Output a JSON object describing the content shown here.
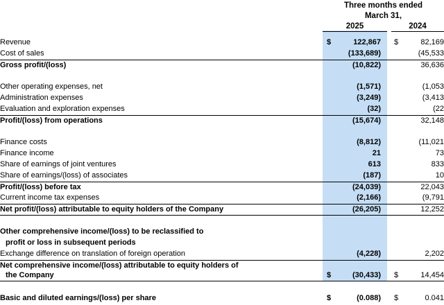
{
  "header": {
    "period_line1": "Three months ended",
    "period_line2": "March 31,",
    "col_2025": "2025",
    "col_2024": "2024"
  },
  "rows": [
    {
      "label": "Revenue",
      "v2025": "122,867",
      "v2024": "82,169",
      "d2025": "$",
      "d2024": "$"
    },
    {
      "label": "Cost of sales",
      "v2025": "(133,689)",
      "v2024": "(45,533"
    },
    {
      "label": "Gross profit/(loss)",
      "v2025": "(10,822)",
      "v2024": "36,636"
    },
    {
      "label": "Other operating expenses, net",
      "v2025": "(1,571)",
      "v2024": "(1,053"
    },
    {
      "label": "Administration expenses",
      "v2025": "(3,249)",
      "v2024": "(3,413"
    },
    {
      "label": "Evaluation and exploration expenses",
      "v2025": "(32)",
      "v2024": "(22"
    },
    {
      "label": "Profit/(loss) from operations",
      "v2025": "(15,674)",
      "v2024": "32,148"
    },
    {
      "label": "Finance costs",
      "v2025": "(8,812)",
      "v2024": "(11,021"
    },
    {
      "label": "Finance income",
      "v2025": "21",
      "v2024": "73"
    },
    {
      "label": "Share of earnings of joint ventures",
      "v2025": "613",
      "v2024": "833"
    },
    {
      "label": "Share of earnings/(loss) of associates",
      "v2025": "(187)",
      "v2024": "10"
    },
    {
      "label": "Profit/(loss) before tax",
      "v2025": "(24,039)",
      "v2024": "22,043"
    },
    {
      "label": "Current income tax expenses",
      "v2025": "(2,166)",
      "v2024": "(9,791"
    },
    {
      "label": "Net profit/(loss) attributable to equity holders of the Company",
      "v2025": "(26,205)",
      "v2024": "12,252"
    },
    {
      "label": "Other comprehensive income/(loss) to be reclassified to"
    },
    {
      "label": "profit or loss in subsequent periods"
    },
    {
      "label": "Exchange difference on translation of foreign operation",
      "v2025": "(4,228)",
      "v2024": "2,202"
    },
    {
      "label": "Net comprehensive income/(loss) attributable to equity holders of"
    },
    {
      "label": "the Company",
      "v2025": "(30,433)",
      "v2024": "14,454",
      "d2025": "$",
      "d2024": "$"
    },
    {
      "label": "Basic and diluted earnings/(loss) per share",
      "v2025": "(0.088)",
      "v2024": "0.041",
      "d2025": "$",
      "d2024": "$"
    }
  ]
}
